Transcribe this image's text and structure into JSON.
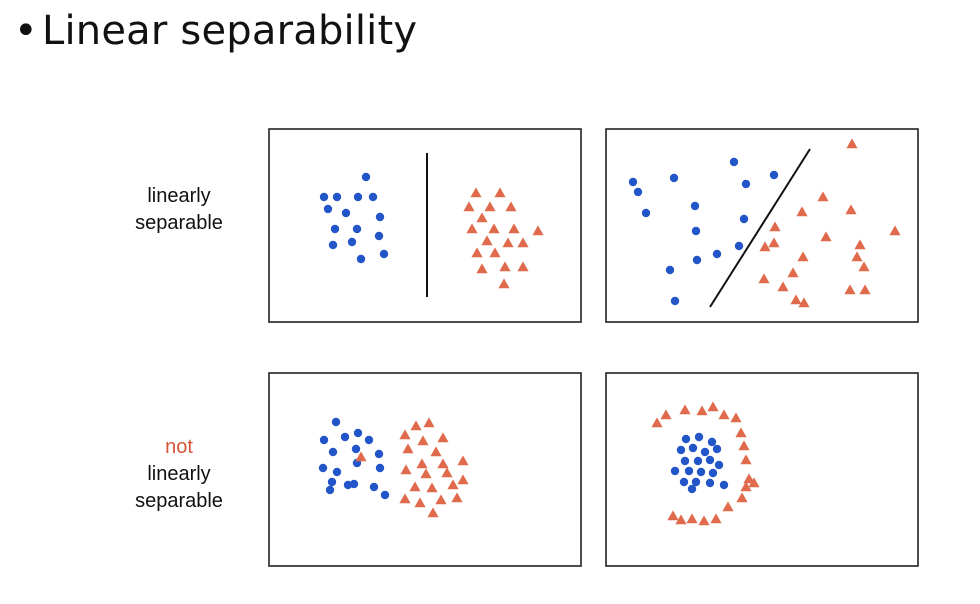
{
  "slide": {
    "bullet": "•",
    "title": "Linear separability"
  },
  "rows": [
    {
      "id": "top",
      "label_lines": [
        "linearly",
        "separable"
      ]
    },
    {
      "id": "bottom",
      "label_not": "not",
      "label_lines": [
        "linearly",
        "separable"
      ]
    }
  ],
  "colors": {
    "class_a_circle": "#2255c8",
    "class_b_triangle": "#e06a4c",
    "not_text": "#d4563a",
    "panel_border": "#222222",
    "separator_line": "#111111"
  },
  "panels": [
    {
      "id": "top-left",
      "separable": true,
      "separator": "vertical line",
      "circles": [
        [
          68,
          68
        ],
        [
          97,
          48
        ],
        [
          55,
          68
        ],
        [
          89,
          68
        ],
        [
          104,
          68
        ],
        [
          59,
          80
        ],
        [
          77,
          84
        ],
        [
          111,
          88
        ],
        [
          66,
          100
        ],
        [
          88,
          100
        ],
        [
          64,
          116
        ],
        [
          83,
          113
        ],
        [
          110,
          107
        ],
        [
          92,
          130
        ],
        [
          115,
          125
        ]
      ],
      "triangles": [
        [
          207,
          64
        ],
        [
          231,
          64
        ],
        [
          200,
          78
        ],
        [
          221,
          78
        ],
        [
          242,
          78
        ],
        [
          213,
          89
        ],
        [
          203,
          100
        ],
        [
          225,
          100
        ],
        [
          245,
          100
        ],
        [
          269,
          102
        ],
        [
          218,
          112
        ],
        [
          239,
          114
        ],
        [
          254,
          114
        ],
        [
          208,
          124
        ],
        [
          226,
          124
        ],
        [
          236,
          138
        ],
        [
          254,
          138
        ],
        [
          213,
          140
        ],
        [
          235,
          155
        ]
      ]
    },
    {
      "id": "top-right",
      "separable": true,
      "separator": "diagonal line",
      "circles": [
        [
          27,
          53
        ],
        [
          32,
          63
        ],
        [
          68,
          49
        ],
        [
          128,
          33
        ],
        [
          140,
          55
        ],
        [
          168,
          46
        ],
        [
          40,
          84
        ],
        [
          89,
          77
        ],
        [
          138,
          90
        ],
        [
          90,
          102
        ],
        [
          133,
          117
        ],
        [
          111,
          125
        ],
        [
          91,
          131
        ],
        [
          64,
          141
        ],
        [
          69,
          172
        ]
      ],
      "triangles": [
        [
          246,
          15
        ],
        [
          217,
          68
        ],
        [
          196,
          83
        ],
        [
          245,
          81
        ],
        [
          169,
          98
        ],
        [
          220,
          108
        ],
        [
          159,
          118
        ],
        [
          254,
          116
        ],
        [
          289,
          102
        ],
        [
          168,
          114
        ],
        [
          197,
          128
        ],
        [
          251,
          128
        ],
        [
          187,
          144
        ],
        [
          258,
          138
        ],
        [
          158,
          150
        ],
        [
          177,
          158
        ],
        [
          190,
          171
        ],
        [
          244,
          161
        ],
        [
          198,
          174
        ],
        [
          259,
          161
        ]
      ]
    },
    {
      "id": "bottom-left",
      "separable": false,
      "separator": "none",
      "circles": [
        [
          67,
          49
        ],
        [
          89,
          60
        ],
        [
          55,
          67
        ],
        [
          76,
          64
        ],
        [
          100,
          67
        ],
        [
          64,
          79
        ],
        [
          87,
          76
        ],
        [
          110,
          81
        ],
        [
          54,
          95
        ],
        [
          68,
          99
        ],
        [
          88,
          90
        ],
        [
          111,
          95
        ],
        [
          63,
          109
        ],
        [
          85,
          111
        ],
        [
          105,
          114
        ],
        [
          116,
          122
        ],
        [
          61,
          117
        ],
        [
          79,
          112
        ]
      ],
      "triangles": [
        [
          136,
          62
        ],
        [
          147,
          53
        ],
        [
          160,
          50
        ],
        [
          139,
          76
        ],
        [
          154,
          68
        ],
        [
          174,
          65
        ],
        [
          167,
          79
        ],
        [
          153,
          91
        ],
        [
          174,
          91
        ],
        [
          194,
          88
        ],
        [
          137,
          97
        ],
        [
          157,
          101
        ],
        [
          178,
          100
        ],
        [
          184,
          112
        ],
        [
          194,
          107
        ],
        [
          146,
          114
        ],
        [
          163,
          115
        ],
        [
          136,
          126
        ],
        [
          151,
          130
        ],
        [
          172,
          127
        ],
        [
          188,
          125
        ],
        [
          164,
          140
        ],
        [
          92,
          84
        ]
      ]
    },
    {
      "id": "bottom-right",
      "separable": false,
      "separator": "none",
      "circles": [
        [
          80,
          66
        ],
        [
          93,
          64
        ],
        [
          106,
          69
        ],
        [
          75,
          77
        ],
        [
          87,
          75
        ],
        [
          99,
          79
        ],
        [
          111,
          76
        ],
        [
          79,
          88
        ],
        [
          92,
          88
        ],
        [
          104,
          87
        ],
        [
          113,
          92
        ],
        [
          69,
          98
        ],
        [
          83,
          98
        ],
        [
          95,
          99
        ],
        [
          107,
          100
        ],
        [
          78,
          109
        ],
        [
          90,
          109
        ],
        [
          104,
          110
        ],
        [
          118,
          112
        ],
        [
          86,
          116
        ]
      ],
      "triangles": [
        [
          51,
          50
        ],
        [
          60,
          42
        ],
        [
          79,
          37
        ],
        [
          96,
          38
        ],
        [
          107,
          34
        ],
        [
          118,
          42
        ],
        [
          130,
          45
        ],
        [
          135,
          60
        ],
        [
          138,
          73
        ],
        [
          140,
          87
        ],
        [
          143,
          106
        ],
        [
          140,
          114
        ],
        [
          136,
          125
        ],
        [
          148,
          110
        ],
        [
          122,
          134
        ],
        [
          110,
          146
        ],
        [
          98,
          148
        ],
        [
          86,
          146
        ],
        [
          75,
          147
        ],
        [
          67,
          143
        ]
      ]
    }
  ]
}
